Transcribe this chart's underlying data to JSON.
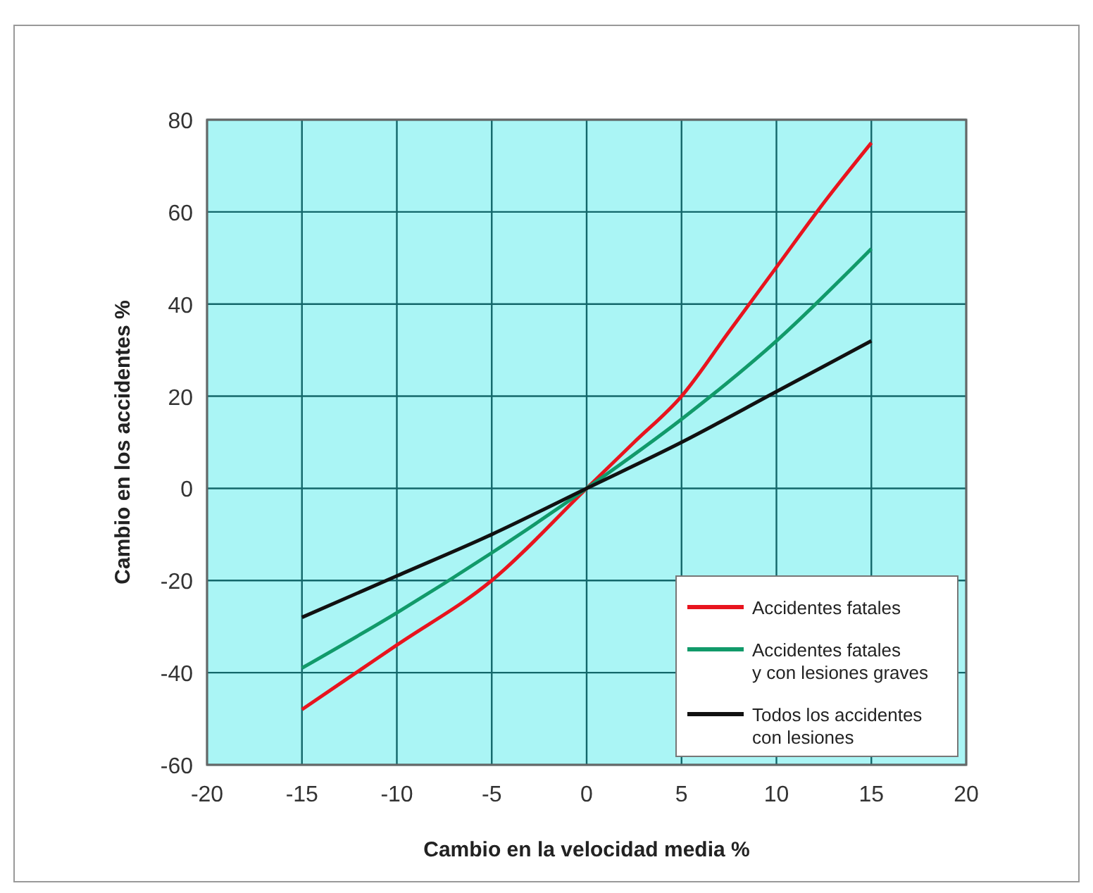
{
  "chart_data": {
    "type": "line",
    "xlabel": "Cambio en la velocidad media %",
    "ylabel": "Cambio en los accidentes %",
    "x": [
      -15,
      -12.5,
      -10,
      -5,
      0,
      2.5,
      5,
      7.5,
      10,
      12.5,
      15
    ],
    "series": [
      {
        "name": "Accidentes fatales",
        "color": "#e8141e",
        "values": [
          -48,
          -41,
          -34,
          -20,
          0,
          10,
          20,
          34,
          48,
          62,
          75
        ]
      },
      {
        "name": "Accidentes fatales\ny con lesiones graves",
        "color": "#119a6a",
        "x": [
          -15,
          -10,
          -5,
          0,
          5,
          10,
          15
        ],
        "values": [
          -39,
          -27,
          -14,
          0,
          15,
          32,
          52
        ]
      },
      {
        "name": "Todos los accidentes\ncon lesiones",
        "color": "#111111",
        "x": [
          -15,
          -10,
          -5,
          0,
          5,
          10,
          15
        ],
        "values": [
          -28,
          -19,
          -10,
          0,
          10,
          21,
          32
        ]
      }
    ],
    "xlim": [
      -20,
      20
    ],
    "xticks": [
      -20,
      -15,
      -10,
      -5,
      0,
      5,
      10,
      15,
      20
    ],
    "ylim": [
      -60,
      80
    ],
    "yticks": [
      -60,
      -40,
      -20,
      0,
      20,
      40,
      60,
      80
    ],
    "grid": true,
    "legend": "bottom right",
    "marker": "none",
    "line_style": "solid"
  }
}
